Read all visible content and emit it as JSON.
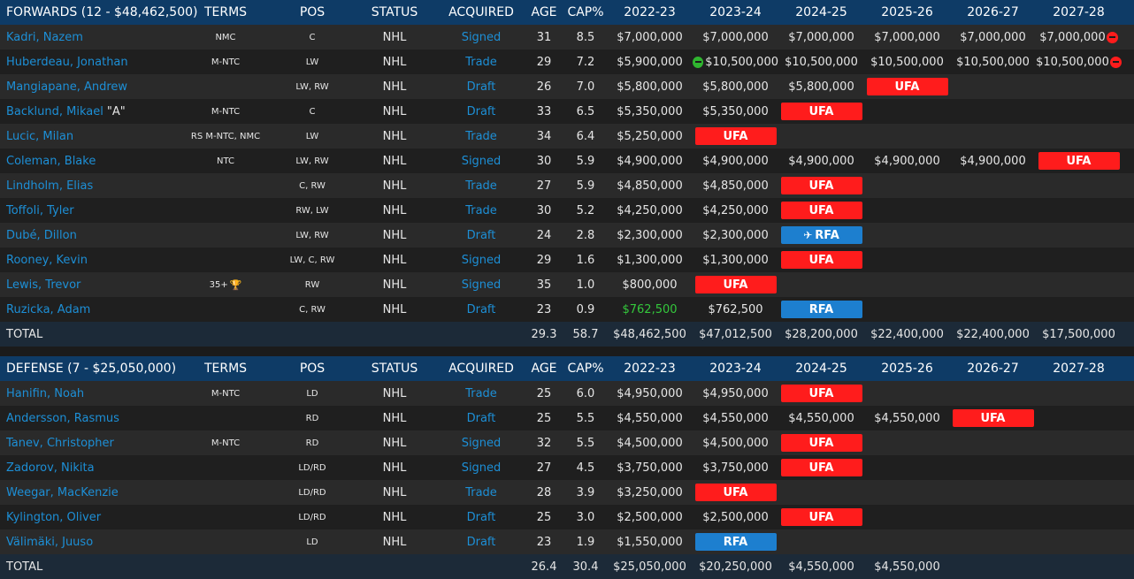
{
  "forwards": {
    "header": {
      "name": "FORWARDS (12 - $48,462,500)",
      "terms": "TERMS",
      "pos": "POS",
      "status": "STATUS",
      "acquired": "ACQUIRED",
      "age": "AGE",
      "cap": "CAP%",
      "years": [
        "2022-23",
        "2023-24",
        "2024-25",
        "2025-26",
        "2026-27",
        "2027-28"
      ]
    },
    "rows": [
      {
        "name": "Kadri, Nazem",
        "suffix": "",
        "terms": "NMC",
        "trophy": false,
        "pos": "C",
        "status": "NHL",
        "acquired": "Signed",
        "age": "31",
        "cap": "8.5",
        "years": [
          {
            "t": "val",
            "v": "$7,000,000"
          },
          {
            "t": "val",
            "v": "$7,000,000"
          },
          {
            "t": "val",
            "v": "$7,000,000"
          },
          {
            "t": "val",
            "v": "$7,000,000"
          },
          {
            "t": "val",
            "v": "$7,000,000"
          },
          {
            "t": "val",
            "v": "$7,000,000",
            "icon": "minus-red"
          }
        ]
      },
      {
        "name": "Huberdeau, Jonathan",
        "suffix": "",
        "terms": "M-NTC",
        "trophy": false,
        "pos": "LW",
        "status": "NHL",
        "acquired": "Trade",
        "age": "29",
        "cap": "7.2",
        "years": [
          {
            "t": "val",
            "v": "$5,900,000"
          },
          {
            "t": "val",
            "v": "$10,500,000",
            "icon": "minus-green"
          },
          {
            "t": "val",
            "v": "$10,500,000"
          },
          {
            "t": "val",
            "v": "$10,500,000"
          },
          {
            "t": "val",
            "v": "$10,500,000"
          },
          {
            "t": "val",
            "v": "$10,500,000",
            "icon": "minus-red"
          }
        ]
      },
      {
        "name": "Mangiapane, Andrew",
        "suffix": "",
        "terms": "",
        "trophy": false,
        "pos": "LW, RW",
        "status": "NHL",
        "acquired": "Draft",
        "age": "26",
        "cap": "7.0",
        "years": [
          {
            "t": "val",
            "v": "$5,800,000"
          },
          {
            "t": "val",
            "v": "$5,800,000"
          },
          {
            "t": "val",
            "v": "$5,800,000"
          },
          {
            "t": "ufa",
            "v": "UFA"
          },
          {
            "t": "empty",
            "v": ""
          },
          {
            "t": "empty",
            "v": ""
          }
        ]
      },
      {
        "name": "Backlund, Mikael",
        "suffix": "\"A\"",
        "terms": "M-NTC",
        "trophy": false,
        "pos": "C",
        "status": "NHL",
        "acquired": "Draft",
        "age": "33",
        "cap": "6.5",
        "years": [
          {
            "t": "val",
            "v": "$5,350,000"
          },
          {
            "t": "val",
            "v": "$5,350,000"
          },
          {
            "t": "ufa",
            "v": "UFA"
          },
          {
            "t": "empty",
            "v": ""
          },
          {
            "t": "empty",
            "v": ""
          },
          {
            "t": "empty",
            "v": ""
          }
        ]
      },
      {
        "name": "Lucic, Milan",
        "suffix": "",
        "terms": "RS M-NTC, NMC",
        "trophy": false,
        "pos": "LW",
        "status": "NHL",
        "acquired": "Trade",
        "age": "34",
        "cap": "6.4",
        "years": [
          {
            "t": "val",
            "v": "$5,250,000"
          },
          {
            "t": "ufa",
            "v": "UFA"
          },
          {
            "t": "empty",
            "v": ""
          },
          {
            "t": "empty",
            "v": ""
          },
          {
            "t": "empty",
            "v": ""
          },
          {
            "t": "empty",
            "v": ""
          }
        ]
      },
      {
        "name": "Coleman, Blake",
        "suffix": "",
        "terms": "NTC",
        "trophy": false,
        "pos": "LW, RW",
        "status": "NHL",
        "acquired": "Signed",
        "age": "30",
        "cap": "5.9",
        "years": [
          {
            "t": "val",
            "v": "$4,900,000"
          },
          {
            "t": "val",
            "v": "$4,900,000"
          },
          {
            "t": "val",
            "v": "$4,900,000"
          },
          {
            "t": "val",
            "v": "$4,900,000"
          },
          {
            "t": "val",
            "v": "$4,900,000"
          },
          {
            "t": "ufa",
            "v": "UFA"
          }
        ]
      },
      {
        "name": "Lindholm, Elias",
        "suffix": "",
        "terms": "",
        "trophy": false,
        "pos": "C, RW",
        "status": "NHL",
        "acquired": "Trade",
        "age": "27",
        "cap": "5.9",
        "years": [
          {
            "t": "val",
            "v": "$4,850,000"
          },
          {
            "t": "val",
            "v": "$4,850,000"
          },
          {
            "t": "ufa",
            "v": "UFA"
          },
          {
            "t": "empty",
            "v": ""
          },
          {
            "t": "empty",
            "v": ""
          },
          {
            "t": "empty",
            "v": ""
          }
        ]
      },
      {
        "name": "Toffoli, Tyler",
        "suffix": "",
        "terms": "",
        "trophy": false,
        "pos": "RW, LW",
        "status": "NHL",
        "acquired": "Trade",
        "age": "30",
        "cap": "5.2",
        "years": [
          {
            "t": "val",
            "v": "$4,250,000"
          },
          {
            "t": "val",
            "v": "$4,250,000"
          },
          {
            "t": "ufa",
            "v": "UFA"
          },
          {
            "t": "empty",
            "v": ""
          },
          {
            "t": "empty",
            "v": ""
          },
          {
            "t": "empty",
            "v": ""
          }
        ]
      },
      {
        "name": "Dubé, Dillon",
        "suffix": "",
        "terms": "",
        "trophy": false,
        "pos": "LW, RW",
        "status": "NHL",
        "acquired": "Draft",
        "age": "24",
        "cap": "2.8",
        "years": [
          {
            "t": "val",
            "v": "$2,300,000"
          },
          {
            "t": "val",
            "v": "$2,300,000"
          },
          {
            "t": "rfa",
            "v": "RFA",
            "icon": "plane"
          },
          {
            "t": "empty",
            "v": ""
          },
          {
            "t": "empty",
            "v": ""
          },
          {
            "t": "empty",
            "v": ""
          }
        ]
      },
      {
        "name": "Rooney, Kevin",
        "suffix": "",
        "terms": "",
        "trophy": false,
        "pos": "LW, C, RW",
        "status": "NHL",
        "acquired": "Signed",
        "age": "29",
        "cap": "1.6",
        "years": [
          {
            "t": "val",
            "v": "$1,300,000"
          },
          {
            "t": "val",
            "v": "$1,300,000"
          },
          {
            "t": "ufa",
            "v": "UFA"
          },
          {
            "t": "empty",
            "v": ""
          },
          {
            "t": "empty",
            "v": ""
          },
          {
            "t": "empty",
            "v": ""
          }
        ]
      },
      {
        "name": "Lewis, Trevor",
        "suffix": "",
        "terms": "35+",
        "trophy": true,
        "pos": "RW",
        "status": "NHL",
        "acquired": "Signed",
        "age": "35",
        "cap": "1.0",
        "years": [
          {
            "t": "val",
            "v": "$800,000"
          },
          {
            "t": "ufa",
            "v": "UFA"
          },
          {
            "t": "empty",
            "v": ""
          },
          {
            "t": "empty",
            "v": ""
          },
          {
            "t": "empty",
            "v": ""
          },
          {
            "t": "empty",
            "v": ""
          }
        ]
      },
      {
        "name": "Ruzicka, Adam",
        "suffix": "",
        "terms": "",
        "trophy": false,
        "pos": "C, RW",
        "status": "NHL",
        "acquired": "Draft",
        "age": "23",
        "cap": "0.9",
        "years": [
          {
            "t": "val",
            "v": "$762,500",
            "color": "green"
          },
          {
            "t": "val",
            "v": "$762,500"
          },
          {
            "t": "rfa",
            "v": "RFA"
          },
          {
            "t": "empty",
            "v": ""
          },
          {
            "t": "empty",
            "v": ""
          },
          {
            "t": "empty",
            "v": ""
          }
        ]
      }
    ],
    "total": {
      "label": "TOTAL",
      "age": "29.3",
      "cap": "58.7",
      "years": [
        "$48,462,500",
        "$47,012,500",
        "$28,200,000",
        "$22,400,000",
        "$22,400,000",
        "$17,500,000"
      ]
    }
  },
  "defense": {
    "header": {
      "name": "DEFENSE (7 - $25,050,000)",
      "terms": "TERMS",
      "pos": "POS",
      "status": "STATUS",
      "acquired": "ACQUIRED",
      "age": "AGE",
      "cap": "CAP%",
      "years": [
        "2022-23",
        "2023-24",
        "2024-25",
        "2025-26",
        "2026-27",
        "2027-28"
      ]
    },
    "rows": [
      {
        "name": "Hanifin, Noah",
        "suffix": "",
        "terms": "M-NTC",
        "trophy": false,
        "pos": "LD",
        "status": "NHL",
        "acquired": "Trade",
        "age": "25",
        "cap": "6.0",
        "years": [
          {
            "t": "val",
            "v": "$4,950,000"
          },
          {
            "t": "val",
            "v": "$4,950,000"
          },
          {
            "t": "ufa",
            "v": "UFA"
          },
          {
            "t": "empty",
            "v": ""
          },
          {
            "t": "empty",
            "v": ""
          },
          {
            "t": "empty",
            "v": ""
          }
        ]
      },
      {
        "name": "Andersson, Rasmus",
        "suffix": "",
        "terms": "",
        "trophy": false,
        "pos": "RD",
        "status": "NHL",
        "acquired": "Draft",
        "age": "25",
        "cap": "5.5",
        "years": [
          {
            "t": "val",
            "v": "$4,550,000"
          },
          {
            "t": "val",
            "v": "$4,550,000"
          },
          {
            "t": "val",
            "v": "$4,550,000"
          },
          {
            "t": "val",
            "v": "$4,550,000"
          },
          {
            "t": "ufa",
            "v": "UFA"
          },
          {
            "t": "empty",
            "v": ""
          }
        ]
      },
      {
        "name": "Tanev, Christopher",
        "suffix": "",
        "terms": "M-NTC",
        "trophy": false,
        "pos": "RD",
        "status": "NHL",
        "acquired": "Signed",
        "age": "32",
        "cap": "5.5",
        "years": [
          {
            "t": "val",
            "v": "$4,500,000"
          },
          {
            "t": "val",
            "v": "$4,500,000"
          },
          {
            "t": "ufa",
            "v": "UFA"
          },
          {
            "t": "empty",
            "v": ""
          },
          {
            "t": "empty",
            "v": ""
          },
          {
            "t": "empty",
            "v": ""
          }
        ]
      },
      {
        "name": "Zadorov, Nikita",
        "suffix": "",
        "terms": "",
        "trophy": false,
        "pos": "LD/RD",
        "status": "NHL",
        "acquired": "Signed",
        "age": "27",
        "cap": "4.5",
        "years": [
          {
            "t": "val",
            "v": "$3,750,000"
          },
          {
            "t": "val",
            "v": "$3,750,000"
          },
          {
            "t": "ufa",
            "v": "UFA"
          },
          {
            "t": "empty",
            "v": ""
          },
          {
            "t": "empty",
            "v": ""
          },
          {
            "t": "empty",
            "v": ""
          }
        ]
      },
      {
        "name": "Weegar, MacKenzie",
        "suffix": "",
        "terms": "",
        "trophy": false,
        "pos": "LD/RD",
        "status": "NHL",
        "acquired": "Trade",
        "age": "28",
        "cap": "3.9",
        "years": [
          {
            "t": "val",
            "v": "$3,250,000"
          },
          {
            "t": "ufa",
            "v": "UFA"
          },
          {
            "t": "empty",
            "v": ""
          },
          {
            "t": "empty",
            "v": ""
          },
          {
            "t": "empty",
            "v": ""
          },
          {
            "t": "empty",
            "v": ""
          }
        ]
      },
      {
        "name": "Kylington, Oliver",
        "suffix": "",
        "terms": "",
        "trophy": false,
        "pos": "LD/RD",
        "status": "NHL",
        "acquired": "Draft",
        "age": "25",
        "cap": "3.0",
        "years": [
          {
            "t": "val",
            "v": "$2,500,000"
          },
          {
            "t": "val",
            "v": "$2,500,000"
          },
          {
            "t": "ufa",
            "v": "UFA"
          },
          {
            "t": "empty",
            "v": ""
          },
          {
            "t": "empty",
            "v": ""
          },
          {
            "t": "empty",
            "v": ""
          }
        ]
      },
      {
        "name": "Välimäki, Juuso",
        "suffix": "",
        "terms": "",
        "trophy": false,
        "pos": "LD",
        "status": "NHL",
        "acquired": "Draft",
        "age": "23",
        "cap": "1.9",
        "years": [
          {
            "t": "val",
            "v": "$1,550,000"
          },
          {
            "t": "rfa",
            "v": "RFA"
          },
          {
            "t": "empty",
            "v": ""
          },
          {
            "t": "empty",
            "v": ""
          },
          {
            "t": "empty",
            "v": ""
          },
          {
            "t": "empty",
            "v": ""
          }
        ]
      }
    ],
    "total": {
      "label": "TOTAL",
      "age": "26.4",
      "cap": "30.4",
      "years": [
        "$25,050,000",
        "$20,250,000",
        "$4,550,000",
        "$4,550,000",
        "",
        ""
      ]
    }
  }
}
